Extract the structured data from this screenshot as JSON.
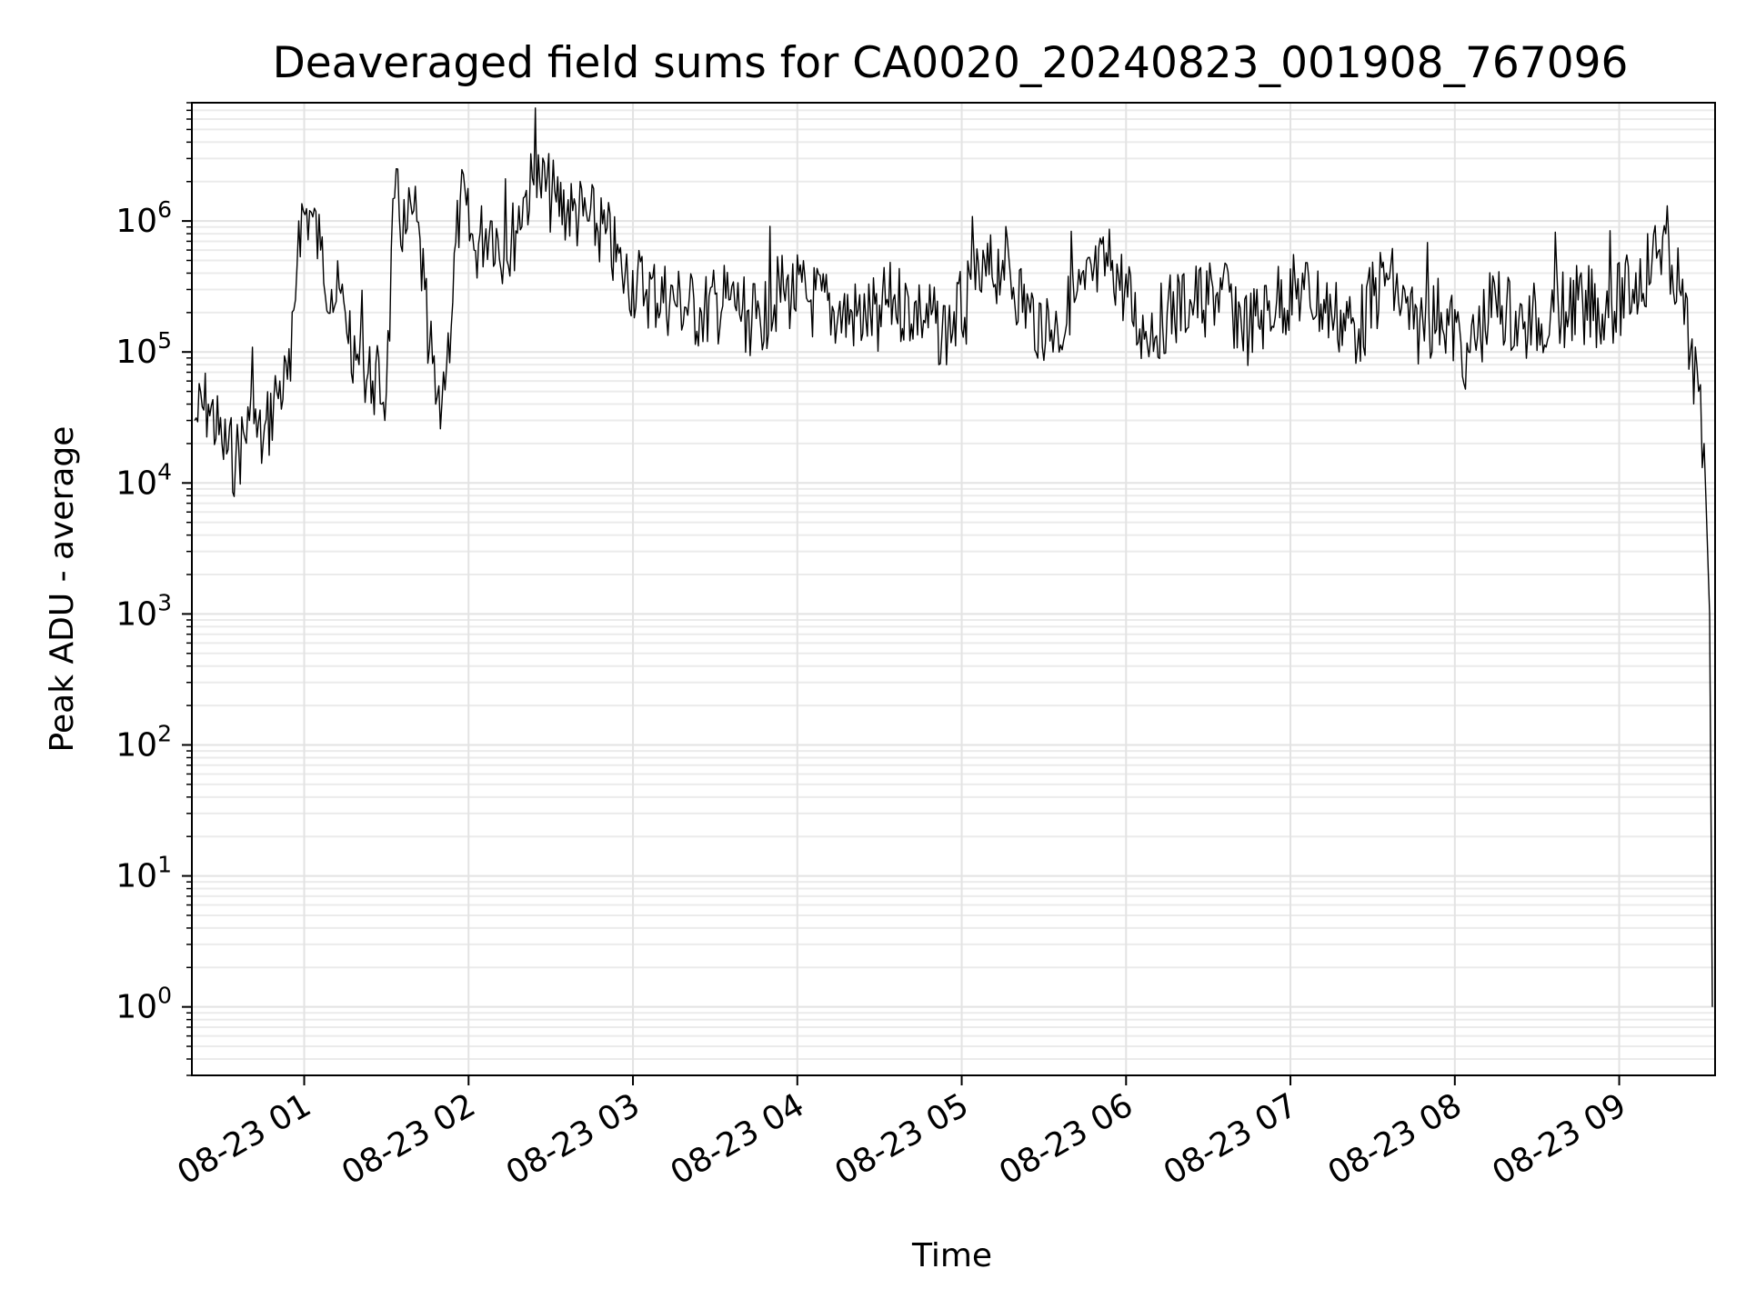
{
  "chart_data": {
    "type": "line",
    "title": "Deaveraged field sums for CA0020_20240823_001908_767096",
    "xlabel": "Time",
    "ylabel": "Peak ADU - average",
    "yscale": "log",
    "ylim": [
      0.3,
      8000000
    ],
    "xlim": [
      "2024-08-23 00:19",
      "2024-08-23 09:35"
    ],
    "grid": true,
    "line_color": "#000000",
    "x_ticks": [
      {
        "time": "2024-08-23 01:00",
        "label": "08-23 01"
      },
      {
        "time": "2024-08-23 02:00",
        "label": "08-23 02"
      },
      {
        "time": "2024-08-23 03:00",
        "label": "08-23 03"
      },
      {
        "time": "2024-08-23 04:00",
        "label": "08-23 04"
      },
      {
        "time": "2024-08-23 05:00",
        "label": "08-23 05"
      },
      {
        "time": "2024-08-23 06:00",
        "label": "08-23 06"
      },
      {
        "time": "2024-08-23 07:00",
        "label": "08-23 07"
      },
      {
        "time": "2024-08-23 08:00",
        "label": "08-23 08"
      },
      {
        "time": "2024-08-23 09:00",
        "label": "08-23 09"
      }
    ],
    "y_ticks": [
      {
        "value": 1,
        "base": "10",
        "exp": "0"
      },
      {
        "value": 10,
        "base": "10",
        "exp": "1"
      },
      {
        "value": 100,
        "base": "10",
        "exp": "2"
      },
      {
        "value": 1000,
        "base": "10",
        "exp": "3"
      },
      {
        "value": 10000,
        "base": "10",
        "exp": "4"
      },
      {
        "value": 100000,
        "base": "10",
        "exp": "5"
      },
      {
        "value": 1000000,
        "base": "10",
        "exp": "6"
      }
    ],
    "series": [
      {
        "x": [
          "2024-08-23 00:20",
          "2024-08-23 00:25",
          "2024-08-23 00:30",
          "2024-08-23 00:35",
          "2024-08-23 00:40",
          "2024-08-23 00:45",
          "2024-08-23 00:50",
          "2024-08-23 00:55",
          "2024-08-23 00:58",
          "2024-08-23 01:02",
          "2024-08-23 01:06",
          "2024-08-23 01:10",
          "2024-08-23 01:15",
          "2024-08-23 01:20",
          "2024-08-23 01:25",
          "2024-08-23 01:30",
          "2024-08-23 01:33",
          "2024-08-23 01:37",
          "2024-08-23 01:40",
          "2024-08-23 01:44",
          "2024-08-23 01:48",
          "2024-08-23 01:52",
          "2024-08-23 01:57",
          "2024-08-23 02:02",
          "2024-08-23 02:08",
          "2024-08-23 02:14",
          "2024-08-23 02:20",
          "2024-08-23 02:26",
          "2024-08-23 02:32",
          "2024-08-23 02:38",
          "2024-08-23 02:44",
          "2024-08-23 02:50",
          "2024-08-23 02:56",
          "2024-08-23 03:05",
          "2024-08-23 03:15",
          "2024-08-23 03:25",
          "2024-08-23 03:35",
          "2024-08-23 03:45",
          "2024-08-23 03:55",
          "2024-08-23 04:05",
          "2024-08-23 04:15",
          "2024-08-23 04:25",
          "2024-08-23 04:35",
          "2024-08-23 04:45",
          "2024-08-23 04:55",
          "2024-08-23 05:05",
          "2024-08-23 05:15",
          "2024-08-23 05:25",
          "2024-08-23 05:35",
          "2024-08-23 05:45",
          "2024-08-23 05:55",
          "2024-08-23 06:05",
          "2024-08-23 06:15",
          "2024-08-23 06:25",
          "2024-08-23 06:35",
          "2024-08-23 06:45",
          "2024-08-23 06:55",
          "2024-08-23 07:05",
          "2024-08-23 07:15",
          "2024-08-23 07:25",
          "2024-08-23 07:35",
          "2024-08-23 07:45",
          "2024-08-23 07:55",
          "2024-08-23 08:05",
          "2024-08-23 08:15",
          "2024-08-23 08:25",
          "2024-08-23 08:35",
          "2024-08-23 08:45",
          "2024-08-23 08:55",
          "2024-08-23 09:05",
          "2024-08-23 09:12",
          "2024-08-23 09:17",
          "2024-08-23 09:22",
          "2024-08-23 09:26",
          "2024-08-23 09:29",
          "2024-08-23 09:31",
          "2024-08-23 09:33",
          "2024-08-23 09:34"
        ],
        "y": [
          30000,
          40000,
          20000,
          15000,
          30000,
          20000,
          50000,
          60000,
          1000000,
          1200000,
          600000,
          300000,
          200000,
          80000,
          60000,
          50000,
          1500000,
          800000,
          1200000,
          300000,
          40000,
          80000,
          1500000,
          600000,
          1000000,
          500000,
          1500000,
          2000000,
          1400000,
          1200000,
          1000000,
          800000,
          400000,
          300000,
          250000,
          200000,
          250000,
          180000,
          300000,
          250000,
          200000,
          180000,
          250000,
          200000,
          150000,
          300000,
          500000,
          200000,
          150000,
          300000,
          500000,
          150000,
          200000,
          250000,
          300000,
          150000,
          250000,
          300000,
          200000,
          150000,
          400000,
          150000,
          200000,
          100000,
          250000,
          150000,
          200000,
          250000,
          200000,
          300000,
          500000,
          800000,
          300000,
          100000,
          50000,
          20000,
          1000,
          1
        ]
      }
    ]
  }
}
